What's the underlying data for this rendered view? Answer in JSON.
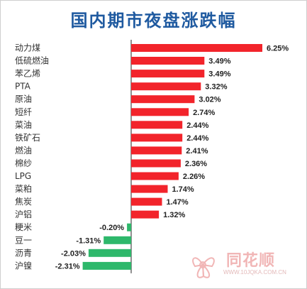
{
  "chart_data": {
    "type": "bar",
    "orientation": "horizontal",
    "title": "国内期市夜盘涨跌幅",
    "categories": [
      "动力煤",
      "低硫燃油",
      "苯乙烯",
      "PTA",
      "原油",
      "短纤",
      "菜油",
      "铁矿石",
      "燃油",
      "棉纱",
      "LPG",
      "菜粕",
      "焦炭",
      "沪铝",
      "粳米",
      "豆一",
      "沥青",
      "沪镍"
    ],
    "values": [
      6.25,
      3.49,
      3.49,
      3.32,
      3.02,
      2.74,
      2.44,
      2.44,
      2.41,
      2.36,
      2.26,
      1.74,
      1.47,
      1.32,
      -0.2,
      -1.31,
      -2.03,
      -2.31
    ],
    "value_labels": [
      "6.25%",
      "3.49%",
      "3.49%",
      "3.32%",
      "3.02%",
      "2.74%",
      "2.44%",
      "2.44%",
      "2.41%",
      "2.36%",
      "2.26%",
      "1.74%",
      "1.47%",
      "1.32%",
      "-0.20%",
      "-1.31%",
      "-2.03%",
      "-2.31%"
    ],
    "xlim": [
      -2.31,
      6.25
    ],
    "colors": {
      "positive": "#f2242b",
      "negative": "#2eb86b",
      "axis": "#222222"
    },
    "grid": false,
    "legend": "none"
  },
  "watermark": {
    "brand": "同花顺",
    "url": "WWW.10JQKA.COM.CN",
    "icon": "flower-logo-icon"
  }
}
